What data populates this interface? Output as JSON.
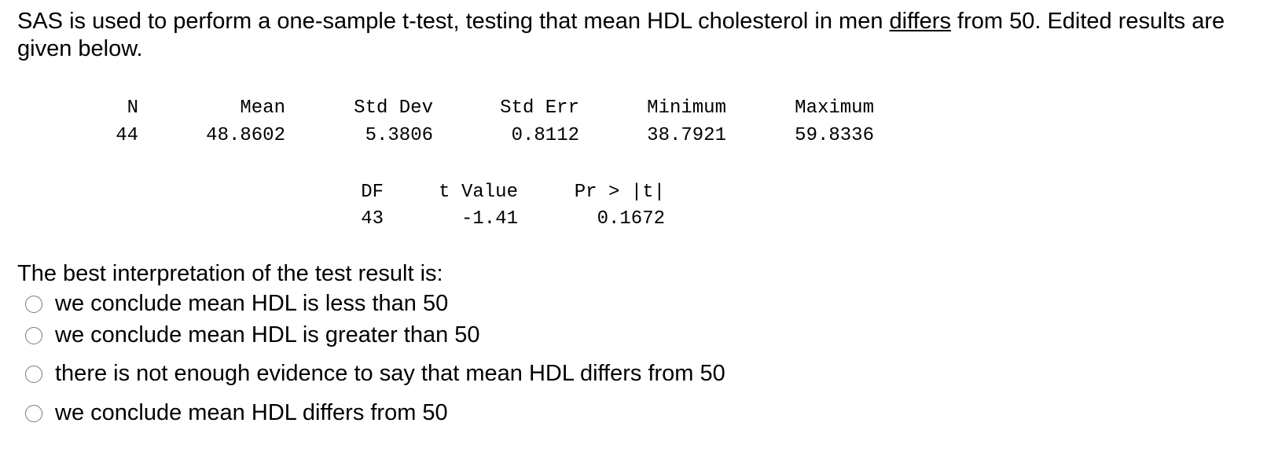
{
  "question": {
    "text_before": "SAS is used to perform a one-sample t-test, testing that mean HDL cholesterol in men ",
    "underlined": "differs",
    "text_after": " from 50.  Edited results are given below."
  },
  "stats_table": {
    "headers": [
      "N",
      "Mean",
      "Std Dev",
      "Std Err",
      "Minimum",
      "Maximum"
    ],
    "values": [
      "44",
      "48.8602",
      "5.3806",
      "0.8112",
      "38.7921",
      "59.8336"
    ]
  },
  "test_table": {
    "headers": [
      "DF",
      "t Value",
      "Pr > |t|"
    ],
    "values": [
      "43",
      "-1.41",
      "0.1672"
    ]
  },
  "prompt": "The best interpretation of the test result is:",
  "options": [
    "we conclude mean HDL is less than 50",
    "we conclude mean HDL is greater than 50",
    "there is not enough evidence to say that mean HDL differs from 50",
    "we conclude mean HDL differs from 50"
  ]
}
